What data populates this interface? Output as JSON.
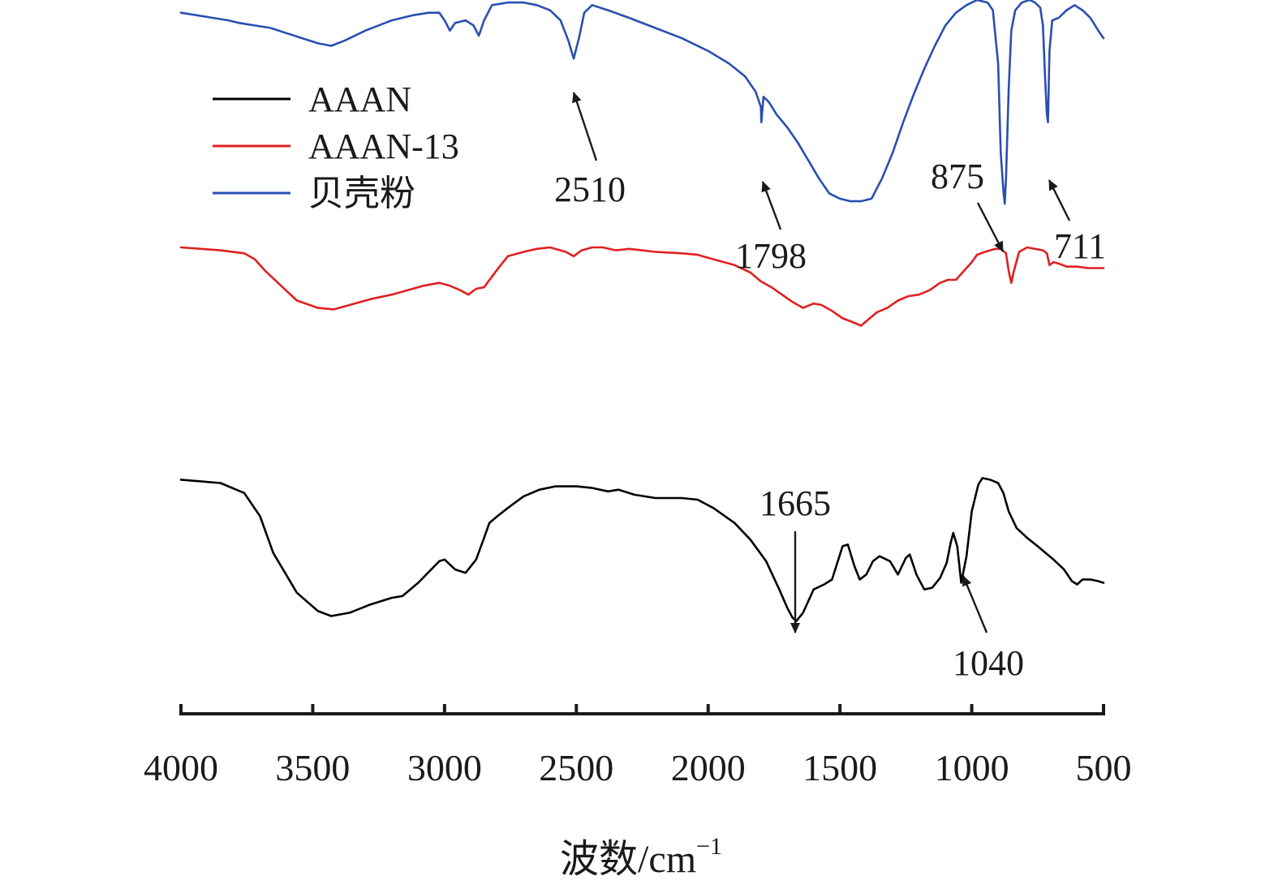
{
  "chart_data": {
    "type": "line",
    "title": "",
    "xlabel": "波数/cm",
    "xlabel_superscript": "−1",
    "ylabel": "",
    "xlim": [
      4000,
      500
    ],
    "x_reversed": true,
    "y_offset_stacked": true,
    "xticks": [
      4000,
      3500,
      3000,
      2500,
      2000,
      1500,
      1000,
      500
    ],
    "grid": false,
    "legend_position": "top-left",
    "series": [
      {
        "name": "AAAN",
        "color": "#000000",
        "points": [
          [
            4000,
            0.92
          ],
          [
            3850,
            0.9
          ],
          [
            3760,
            0.84
          ],
          [
            3700,
            0.7
          ],
          [
            3650,
            0.48
          ],
          [
            3560,
            0.24
          ],
          [
            3480,
            0.13
          ],
          [
            3430,
            0.1
          ],
          [
            3360,
            0.12
          ],
          [
            3280,
            0.17
          ],
          [
            3200,
            0.21
          ],
          [
            3160,
            0.22
          ],
          [
            3100,
            0.3
          ],
          [
            3020,
            0.43
          ],
          [
            3000,
            0.44
          ],
          [
            2960,
            0.38
          ],
          [
            2920,
            0.36
          ],
          [
            2880,
            0.44
          ],
          [
            2850,
            0.57
          ],
          [
            2830,
            0.66
          ],
          [
            2800,
            0.7
          ],
          [
            2760,
            0.75
          ],
          [
            2700,
            0.82
          ],
          [
            2640,
            0.86
          ],
          [
            2580,
            0.88
          ],
          [
            2500,
            0.88
          ],
          [
            2440,
            0.87
          ],
          [
            2380,
            0.85
          ],
          [
            2340,
            0.86
          ],
          [
            2280,
            0.83
          ],
          [
            2200,
            0.81
          ],
          [
            2100,
            0.81
          ],
          [
            2040,
            0.8
          ],
          [
            1980,
            0.75
          ],
          [
            1900,
            0.66
          ],
          [
            1840,
            0.56
          ],
          [
            1780,
            0.43
          ],
          [
            1730,
            0.26
          ],
          [
            1700,
            0.15
          ],
          [
            1680,
            0.09
          ],
          [
            1665,
            0.07
          ],
          [
            1640,
            0.12
          ],
          [
            1600,
            0.26
          ],
          [
            1560,
            0.29
          ],
          [
            1530,
            0.32
          ],
          [
            1510,
            0.42
          ],
          [
            1490,
            0.52
          ],
          [
            1470,
            0.53
          ],
          [
            1445,
            0.4
          ],
          [
            1425,
            0.32
          ],
          [
            1400,
            0.35
          ],
          [
            1375,
            0.43
          ],
          [
            1350,
            0.46
          ],
          [
            1310,
            0.43
          ],
          [
            1280,
            0.35
          ],
          [
            1250,
            0.45
          ],
          [
            1235,
            0.47
          ],
          [
            1210,
            0.35
          ],
          [
            1180,
            0.26
          ],
          [
            1150,
            0.27
          ],
          [
            1120,
            0.33
          ],
          [
            1095,
            0.42
          ],
          [
            1080,
            0.54
          ],
          [
            1070,
            0.6
          ],
          [
            1055,
            0.52
          ],
          [
            1040,
            0.3
          ],
          [
            1020,
            0.46
          ],
          [
            1000,
            0.73
          ],
          [
            975,
            0.89
          ],
          [
            960,
            0.93
          ],
          [
            930,
            0.92
          ],
          [
            900,
            0.9
          ],
          [
            880,
            0.84
          ],
          [
            860,
            0.73
          ],
          [
            830,
            0.63
          ],
          [
            790,
            0.57
          ],
          [
            750,
            0.52
          ],
          [
            720,
            0.48
          ],
          [
            690,
            0.44
          ],
          [
            650,
            0.38
          ],
          [
            620,
            0.31
          ],
          [
            600,
            0.29
          ],
          [
            580,
            0.32
          ],
          [
            550,
            0.32
          ],
          [
            520,
            0.31
          ],
          [
            500,
            0.3
          ]
        ]
      },
      {
        "name": "AAAN-13",
        "color": "#e02020",
        "points": [
          [
            4000,
            1.0
          ],
          [
            3850,
            0.98
          ],
          [
            3760,
            0.96
          ],
          [
            3720,
            0.92
          ],
          [
            3680,
            0.84
          ],
          [
            3620,
            0.74
          ],
          [
            3560,
            0.64
          ],
          [
            3480,
            0.59
          ],
          [
            3420,
            0.58
          ],
          [
            3360,
            0.61
          ],
          [
            3280,
            0.65
          ],
          [
            3200,
            0.68
          ],
          [
            3140,
            0.71
          ],
          [
            3080,
            0.74
          ],
          [
            3020,
            0.76
          ],
          [
            2980,
            0.74
          ],
          [
            2940,
            0.71
          ],
          [
            2910,
            0.68
          ],
          [
            2880,
            0.72
          ],
          [
            2850,
            0.73
          ],
          [
            2800,
            0.85
          ],
          [
            2760,
            0.94
          ],
          [
            2700,
            0.97
          ],
          [
            2650,
            0.99
          ],
          [
            2600,
            1.0
          ],
          [
            2540,
            0.97
          ],
          [
            2510,
            0.94
          ],
          [
            2480,
            0.98
          ],
          [
            2440,
            1.0
          ],
          [
            2400,
            1.0
          ],
          [
            2350,
            0.98
          ],
          [
            2300,
            0.99
          ],
          [
            2200,
            0.97
          ],
          [
            2100,
            0.96
          ],
          [
            2040,
            0.95
          ],
          [
            1980,
            0.92
          ],
          [
            1900,
            0.88
          ],
          [
            1840,
            0.83
          ],
          [
            1800,
            0.77
          ],
          [
            1760,
            0.73
          ],
          [
            1720,
            0.68
          ],
          [
            1680,
            0.63
          ],
          [
            1640,
            0.59
          ],
          [
            1600,
            0.62
          ],
          [
            1570,
            0.61
          ],
          [
            1530,
            0.57
          ],
          [
            1490,
            0.52
          ],
          [
            1460,
            0.5
          ],
          [
            1420,
            0.47
          ],
          [
            1400,
            0.5
          ],
          [
            1360,
            0.56
          ],
          [
            1320,
            0.59
          ],
          [
            1280,
            0.64
          ],
          [
            1240,
            0.67
          ],
          [
            1200,
            0.68
          ],
          [
            1160,
            0.71
          ],
          [
            1120,
            0.76
          ],
          [
            1090,
            0.78
          ],
          [
            1060,
            0.78
          ],
          [
            1030,
            0.84
          ],
          [
            1000,
            0.9
          ],
          [
            980,
            0.95
          ],
          [
            950,
            0.97
          ],
          [
            910,
            0.99
          ],
          [
            890,
            0.99
          ],
          [
            870,
            0.96
          ],
          [
            860,
            0.84
          ],
          [
            850,
            0.76
          ],
          [
            840,
            0.84
          ],
          [
            820,
            0.97
          ],
          [
            790,
            1.0
          ],
          [
            760,
            0.99
          ],
          [
            730,
            0.98
          ],
          [
            715,
            0.96
          ],
          [
            705,
            0.88
          ],
          [
            690,
            0.9
          ],
          [
            670,
            0.89
          ],
          [
            640,
            0.87
          ],
          [
            600,
            0.87
          ],
          [
            560,
            0.86
          ],
          [
            500,
            0.86
          ]
        ]
      },
      {
        "name": "贝壳粉",
        "color": "#2a4fb0",
        "points": [
          [
            4000,
            0.95
          ],
          [
            3940,
            0.94
          ],
          [
            3880,
            0.93
          ],
          [
            3820,
            0.92
          ],
          [
            3780,
            0.91
          ],
          [
            3720,
            0.9
          ],
          [
            3660,
            0.89
          ],
          [
            3600,
            0.87
          ],
          [
            3540,
            0.85
          ],
          [
            3480,
            0.83
          ],
          [
            3430,
            0.82
          ],
          [
            3380,
            0.84
          ],
          [
            3300,
            0.88
          ],
          [
            3200,
            0.92
          ],
          [
            3120,
            0.94
          ],
          [
            3060,
            0.95
          ],
          [
            3020,
            0.95
          ],
          [
            3000,
            0.92
          ],
          [
            2980,
            0.88
          ],
          [
            2960,
            0.91
          ],
          [
            2920,
            0.92
          ],
          [
            2890,
            0.9
          ],
          [
            2870,
            0.86
          ],
          [
            2850,
            0.92
          ],
          [
            2820,
            0.98
          ],
          [
            2760,
            0.99
          ],
          [
            2700,
            0.99
          ],
          [
            2650,
            0.98
          ],
          [
            2600,
            0.96
          ],
          [
            2560,
            0.92
          ],
          [
            2530,
            0.84
          ],
          [
            2510,
            0.77
          ],
          [
            2490,
            0.85
          ],
          [
            2470,
            0.95
          ],
          [
            2440,
            0.98
          ],
          [
            2380,
            0.96
          ],
          [
            2300,
            0.93
          ],
          [
            2200,
            0.89
          ],
          [
            2100,
            0.85
          ],
          [
            2000,
            0.8
          ],
          [
            1920,
            0.75
          ],
          [
            1860,
            0.7
          ],
          [
            1820,
            0.64
          ],
          [
            1800,
            0.58
          ],
          [
            1798,
            0.52
          ],
          [
            1790,
            0.62
          ],
          [
            1770,
            0.6
          ],
          [
            1740,
            0.55
          ],
          [
            1700,
            0.5
          ],
          [
            1660,
            0.44
          ],
          [
            1620,
            0.37
          ],
          [
            1580,
            0.3
          ],
          [
            1540,
            0.24
          ],
          [
            1500,
            0.22
          ],
          [
            1460,
            0.21
          ],
          [
            1420,
            0.21
          ],
          [
            1380,
            0.22
          ],
          [
            1340,
            0.3
          ],
          [
            1300,
            0.4
          ],
          [
            1260,
            0.52
          ],
          [
            1220,
            0.63
          ],
          [
            1180,
            0.73
          ],
          [
            1140,
            0.82
          ],
          [
            1100,
            0.9
          ],
          [
            1060,
            0.95
          ],
          [
            1020,
            0.98
          ],
          [
            980,
            1.0
          ],
          [
            940,
            0.99
          ],
          [
            920,
            0.96
          ],
          [
            900,
            0.75
          ],
          [
            890,
            0.4
          ],
          [
            880,
            0.25
          ],
          [
            875,
            0.2
          ],
          [
            870,
            0.3
          ],
          [
            860,
            0.65
          ],
          [
            850,
            0.88
          ],
          [
            835,
            0.96
          ],
          [
            810,
            0.99
          ],
          [
            780,
            1.0
          ],
          [
            760,
            0.99
          ],
          [
            740,
            0.97
          ],
          [
            730,
            0.9
          ],
          [
            722,
            0.7
          ],
          [
            715,
            0.55
          ],
          [
            711,
            0.52
          ],
          [
            705,
            0.8
          ],
          [
            695,
            0.92
          ],
          [
            670,
            0.93
          ],
          [
            640,
            0.96
          ],
          [
            610,
            0.98
          ],
          [
            580,
            0.96
          ],
          [
            550,
            0.93
          ],
          [
            520,
            0.88
          ],
          [
            500,
            0.85
          ]
        ]
      }
    ],
    "annotations": [
      {
        "label": "2510",
        "series": "贝壳粉",
        "x": 2510,
        "style": "arrow"
      },
      {
        "label": "1798",
        "series": "贝壳粉",
        "x": 1798,
        "style": "arrow"
      },
      {
        "label": "875",
        "series": "贝壳粉",
        "x": 875,
        "style": "arrow"
      },
      {
        "label": "711",
        "series": "贝壳粉",
        "x": 711,
        "style": "arrow"
      },
      {
        "label": "1665",
        "series": "AAAN",
        "x": 1665,
        "style": "line"
      },
      {
        "label": "1040",
        "series": "AAAN",
        "x": 1040,
        "style": "arrow"
      }
    ]
  }
}
